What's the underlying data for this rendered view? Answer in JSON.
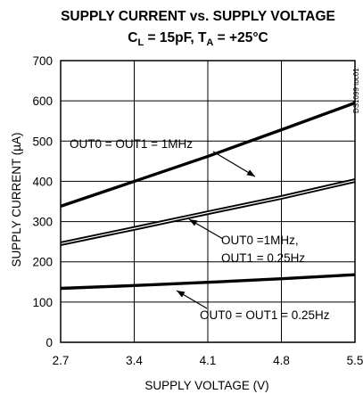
{
  "chart_data": {
    "type": "line",
    "title_line1": "SUPPLY CURRENT vs. SUPPLY VOLTAGE",
    "title_line2": {
      "c": "C",
      "c_sub": "L",
      "c_val": " = 15pF, ",
      "t": "T",
      "t_sub": "A",
      "t_val": " = +25°C"
    },
    "xlabel": "SUPPLY VOLTAGE (V)",
    "ylabel": "SUPPLY CURRENT (µA)",
    "xlim": [
      2.7,
      5.5
    ],
    "ylim": [
      0,
      700
    ],
    "x_ticks": [
      "2.7",
      "3.4",
      "4.1",
      "4.8",
      "5.5"
    ],
    "y_ticks": [
      "0",
      "100",
      "200",
      "300",
      "400",
      "500",
      "600",
      "700"
    ],
    "grid": true,
    "figure_code": "DS1099 toc01",
    "series": [
      {
        "name": "OUT0 = OUT1 = 1MHz",
        "style": "solid",
        "x": [
          2.7,
          3.4,
          4.1,
          4.8,
          5.5
        ],
        "y": [
          338,
          400,
          462,
          528,
          595
        ]
      },
      {
        "name": "OUT0 =1MHz, OUT1 = 0.25Hz",
        "style": "double",
        "x": [
          2.7,
          3.4,
          4.1,
          4.8,
          5.5
        ],
        "y": [
          245,
          283,
          322,
          360,
          402
        ]
      },
      {
        "name": "OUT0 = OUT1 = 0.25Hz",
        "style": "solid",
        "x": [
          2.7,
          3.4,
          4.1,
          4.8,
          5.5
        ],
        "y": [
          134,
          141,
          149,
          158,
          168
        ]
      }
    ],
    "annotations": [
      {
        "series": 0,
        "text": [
          "OUT0 = OUT1 = 1MHz"
        ]
      },
      {
        "series": 1,
        "text": [
          "OUT0 =1MHz,",
          "OUT1 = 0.25Hz"
        ]
      },
      {
        "series": 2,
        "text": [
          "OUT0 = OUT1 = 0.25Hz"
        ]
      }
    ]
  }
}
